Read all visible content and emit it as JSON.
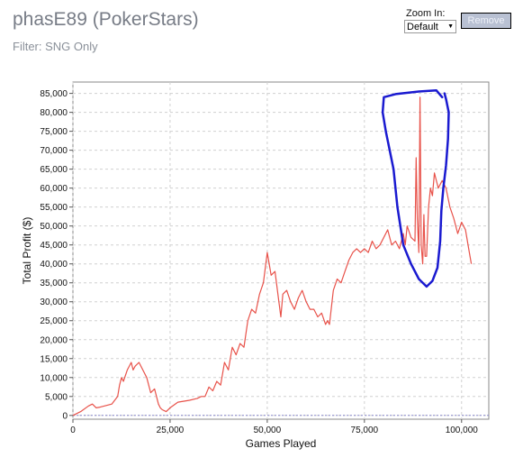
{
  "header": {
    "title": "phasE89 (PokerStars)",
    "filter": "Filter: SNG Only"
  },
  "zoom": {
    "label": "Zoom In:",
    "selected": "Default",
    "remove_label": "Remove"
  },
  "colors": {
    "line": "#e8524a",
    "annotation": "#1a1ad0",
    "zero_line": "#8888cc",
    "grid": "#d0d0d0"
  },
  "chart_data": {
    "type": "line",
    "xlabel": "Games Played",
    "ylabel": "Total Profit ($)",
    "xlim": [
      0,
      107000
    ],
    "ylim": [
      -1000,
      88000
    ],
    "x_ticks": [
      0,
      25000,
      50000,
      75000,
      100000
    ],
    "x_tick_labels": [
      "0",
      "25,000",
      "50,000",
      "75,000",
      "100,000"
    ],
    "y_ticks": [
      0,
      5000,
      10000,
      15000,
      20000,
      25000,
      30000,
      35000,
      40000,
      45000,
      50000,
      55000,
      60000,
      65000,
      70000,
      75000,
      80000,
      85000
    ],
    "y_tick_labels": [
      "0",
      "5,000",
      "10,000",
      "15,000",
      "20,000",
      "25,000",
      "30,000",
      "35,000",
      "40,000",
      "45,000",
      "50,000",
      "55,000",
      "60,000",
      "65,000",
      "70,000",
      "75,000",
      "80,000",
      "85,000"
    ],
    "grid": true,
    "series": [
      {
        "x": [
          0,
          2000,
          4000,
          5000,
          6000,
          7000,
          10000,
          11500,
          12000,
          12500,
          13000,
          14000,
          15000,
          15500,
          16000,
          17000,
          18000,
          19000,
          20000,
          21000,
          22000,
          22500,
          23000,
          24000,
          25000,
          27000,
          30000,
          32000,
          33000,
          34000,
          35000,
          36000,
          37000,
          38000,
          39000,
          40000,
          41000,
          42000,
          43000,
          44000,
          45000,
          46000,
          47000,
          48000,
          49000,
          50000,
          51000,
          52000,
          53000,
          53500,
          54000,
          55000,
          56000,
          57000,
          58000,
          59000,
          60000,
          61000,
          62000,
          63000,
          64000,
          65000,
          65500,
          66000,
          67000,
          68000,
          69000,
          70000,
          71000,
          72000,
          73000,
          74000,
          75000,
          76000,
          77000,
          78000,
          79000,
          80000,
          81000,
          82000,
          83000,
          84000,
          85000,
          85500,
          86000,
          87000,
          88000,
          88300,
          88600,
          89000,
          89300,
          89600,
          90000,
          90300,
          90600,
          91000,
          91500,
          92000,
          92500,
          93000,
          94000,
          95000,
          96000,
          97000,
          98000,
          99000,
          100000,
          101000,
          102000,
          102500
        ],
        "y": [
          0,
          1000,
          2500,
          3000,
          2000,
          2200,
          3000,
          5000,
          8000,
          10000,
          9000,
          12000,
          14000,
          12000,
          13000,
          14000,
          12000,
          10000,
          6000,
          7000,
          3000,
          2000,
          1500,
          1000,
          2000,
          3500,
          4000,
          4500,
          5000,
          5000,
          7500,
          6500,
          9000,
          8000,
          14000,
          12000,
          18000,
          16000,
          19000,
          18000,
          25000,
          28000,
          27000,
          32000,
          35000,
          43000,
          37000,
          38000,
          30000,
          26000,
          32000,
          33000,
          30000,
          28000,
          31000,
          33000,
          30000,
          28000,
          28000,
          26000,
          27000,
          24000,
          25000,
          24000,
          33000,
          36000,
          35000,
          38000,
          41000,
          43000,
          44000,
          43000,
          44000,
          43000,
          46000,
          44000,
          45000,
          47000,
          49000,
          45000,
          46000,
          44000,
          48000,
          45000,
          50000,
          47000,
          46000,
          68000,
          52000,
          43000,
          84000,
          45000,
          40000,
          53000,
          42000,
          42000,
          55000,
          60000,
          58000,
          64000,
          60000,
          62000,
          60000,
          55000,
          52000,
          48000,
          51000,
          49000,
          43000,
          40000
        ]
      }
    ],
    "annotation": {
      "type": "freehand-ellipse",
      "x": [
        95000,
        93500,
        89000,
        83000,
        80000,
        79700,
        80500,
        81500,
        82500,
        83500,
        85000,
        87000,
        89000,
        91000,
        92500,
        93800,
        94500,
        94800,
        95300,
        96000,
        96500,
        96700,
        96000,
        95600
      ],
      "y": [
        84000,
        85800,
        85500,
        84800,
        84000,
        80000,
        75000,
        70000,
        65000,
        55000,
        45000,
        40000,
        36000,
        34000,
        35500,
        39000,
        46000,
        54000,
        60000,
        66000,
        73000,
        80000,
        83500,
        85000
      ]
    }
  }
}
